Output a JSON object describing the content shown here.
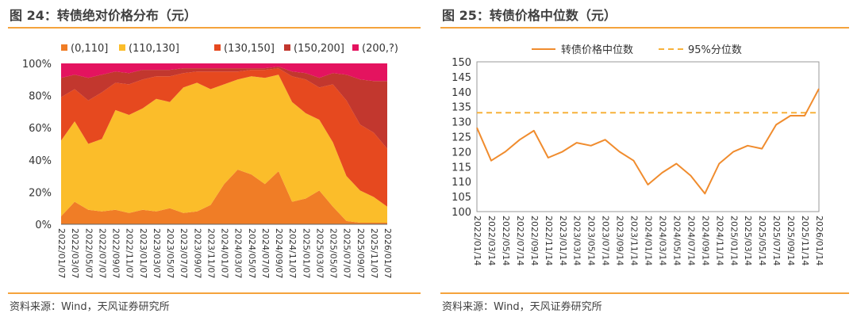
{
  "left_panel": {
    "title": "图 24：转债绝对价格分布（元）",
    "source": "资料来源：Wind，天风证券研究所"
  },
  "right_panel": {
    "title": "图 25：转债价格中位数（元）",
    "source": "资料来源：Wind，天风证券研究所"
  },
  "colors": {
    "accent_rule": "#f5a33c",
    "series_0_110": "#f07d26",
    "series_110_130": "#fbbd2a",
    "series_130_150": "#e6491f",
    "series_150_200": "#c2372e",
    "series_200_plus": "#e4135f",
    "median_line": "#f08c2e",
    "p95_line": "#f7b13a"
  },
  "chart_data": [
    {
      "type": "area",
      "stacked": "percent",
      "title": "转债绝对价格分布（元）",
      "legend_position": "top",
      "x_tick_labels": [
        "2022/01/07",
        "2022/03/07",
        "2022/05/07",
        "2022/07/07",
        "2022/09/07",
        "2022/11/07",
        "2023/01/07",
        "2023/03/07",
        "2023/05/07",
        "2023/07/07",
        "2023/09/07",
        "2023/11/07",
        "2024/01/07",
        "2024/03/07",
        "2024/05/07",
        "2024/07/07",
        "2024/09/07",
        "2024/11/07",
        "2025/01/07",
        "2025/03/07",
        "2025/05/07",
        "2025/07/07",
        "2025/09/07",
        "2025/11/07",
        "2026/01/07"
      ],
      "y_tick_labels": [
        "0%",
        "20%",
        "40%",
        "60%",
        "80%",
        "100%"
      ],
      "ylim": [
        0,
        100
      ],
      "x": [
        "2022/01",
        "2022/03",
        "2022/05",
        "2022/07",
        "2022/09",
        "2022/11",
        "2023/01",
        "2023/03",
        "2023/05",
        "2023/07",
        "2023/09",
        "2023/11",
        "2024/01",
        "2024/03",
        "2024/05",
        "2024/07",
        "2024/09",
        "2024/11",
        "2025/01",
        "2025/03",
        "2025/05",
        "2025/07",
        "2025/09",
        "2025/11",
        "2026/01"
      ],
      "series": [
        {
          "name": "(0,110]",
          "values": [
            5,
            14,
            9,
            8,
            9,
            7,
            9,
            8,
            10,
            7,
            8,
            12,
            25,
            34,
            31,
            25,
            33,
            14,
            16,
            21,
            11,
            2,
            1,
            1,
            1
          ]
        },
        {
          "name": "(110,130]",
          "values": [
            47,
            50,
            41,
            45,
            62,
            61,
            63,
            70,
            66,
            78,
            80,
            72,
            62,
            56,
            61,
            66,
            60,
            62,
            53,
            44,
            40,
            28,
            20,
            16,
            10
          ]
        },
        {
          "name": "(130,150]",
          "values": [
            27,
            20,
            27,
            29,
            17,
            19,
            18,
            14,
            16,
            9,
            7,
            11,
            8,
            5,
            4,
            5,
            4,
            16,
            21,
            20,
            36,
            47,
            41,
            40,
            36
          ]
        },
        {
          "name": "(150,200]",
          "values": [
            12,
            9,
            14,
            11,
            7,
            7,
            6,
            4,
            4,
            3,
            2,
            2,
            2,
            2,
            1,
            1,
            1,
            3,
            4,
            6,
            7,
            16,
            28,
            32,
            42
          ]
        },
        {
          "name": "(200,?)",
          "values": [
            9,
            7,
            9,
            7,
            5,
            6,
            4,
            4,
            4,
            3,
            3,
            3,
            3,
            3,
            3,
            3,
            2,
            5,
            6,
            9,
            6,
            7,
            10,
            11,
            11
          ]
        }
      ]
    },
    {
      "type": "line",
      "title": "转债价格中位数（元）",
      "legend_position": "top",
      "x_tick_labels": [
        "2022/01/14",
        "2022/03/14",
        "2022/05/14",
        "2022/07/14",
        "2022/09/14",
        "2022/11/14",
        "2023/01/14",
        "2023/03/14",
        "2023/05/14",
        "2023/07/14",
        "2023/09/14",
        "2023/11/14",
        "2024/01/14",
        "2024/03/14",
        "2024/05/14",
        "2024/07/14",
        "2024/09/14",
        "2024/11/14",
        "2025/01/14",
        "2025/03/14",
        "2025/05/14",
        "2025/07/14",
        "2025/09/14",
        "2025/11/14",
        "2026/01/14"
      ],
      "y_tick_labels": [
        "100",
        "105",
        "110",
        "115",
        "120",
        "125",
        "130",
        "135",
        "140",
        "145",
        "150"
      ],
      "ylim": [
        100,
        150
      ],
      "x": [
        "2022/01",
        "2022/03",
        "2022/05",
        "2022/07",
        "2022/09",
        "2022/11",
        "2023/01",
        "2023/03",
        "2023/05",
        "2023/07",
        "2023/09",
        "2023/11",
        "2024/01",
        "2024/03",
        "2024/05",
        "2024/07",
        "2024/09",
        "2024/11",
        "2025/01",
        "2025/03",
        "2025/05",
        "2025/07",
        "2025/09",
        "2025/11",
        "2026/01"
      ],
      "series": [
        {
          "name": "转债价格中位数",
          "values": [
            128,
            117,
            120,
            124,
            127,
            118,
            120,
            123,
            122,
            124,
            120,
            117,
            109,
            113,
            116,
            112,
            106,
            116,
            120,
            122,
            121,
            129,
            132,
            132,
            141
          ]
        },
        {
          "name": "95%分位数",
          "constant": 133,
          "style": "dashed"
        }
      ]
    }
  ]
}
